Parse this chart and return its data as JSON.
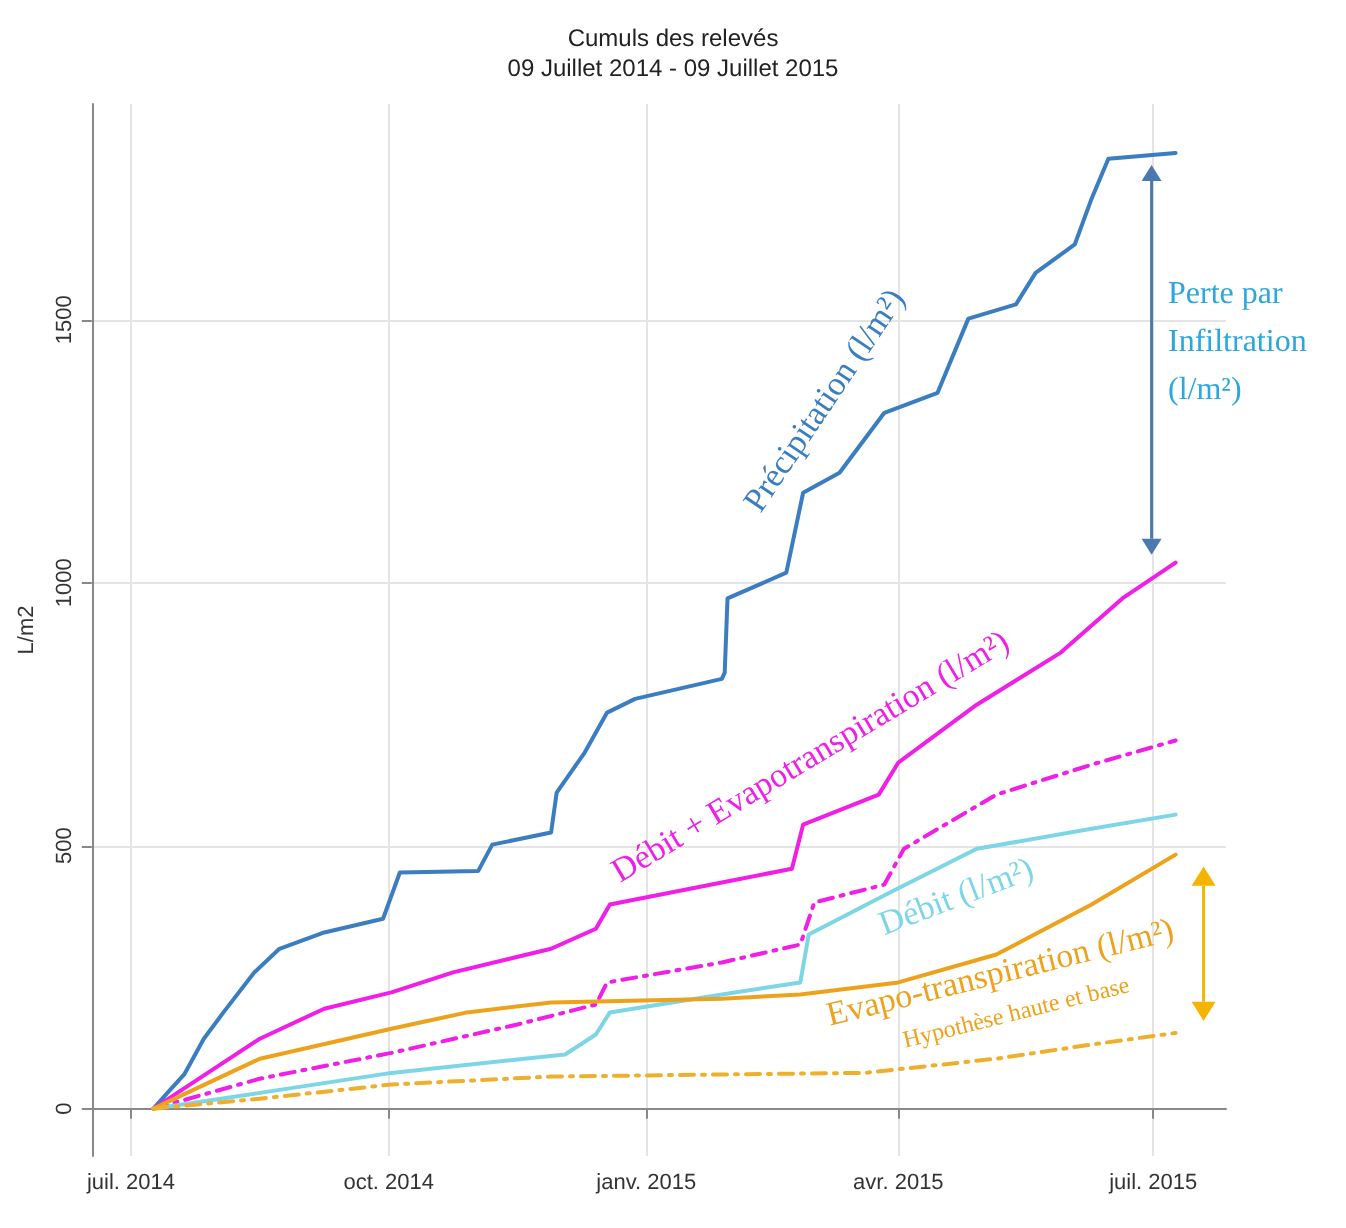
{
  "chart_data": {
    "type": "line",
    "title": "Cumuls des relevés",
    "subtitle": "09 Juillet 2014 - 09 Juillet 2015",
    "ylabel": "L/m2",
    "xlim": [
      "2014-06-17",
      "2015-07-27"
    ],
    "xticks": [
      {
        "value": "2014-07-01",
        "label": "juil. 2014"
      },
      {
        "value": "2014-10-01",
        "label": "oct. 2014"
      },
      {
        "value": "2015-01-01",
        "label": "janv. 2015"
      },
      {
        "value": "2015-04-01",
        "label": "avr. 2015"
      },
      {
        "value": "2015-07-01",
        "label": "juil. 2015"
      }
    ],
    "ylim": [
      -90,
      1910
    ],
    "yticks": [
      0,
      500,
      1000,
      1500
    ],
    "grid": true,
    "legend": false,
    "marker": "none",
    "series": [
      {
        "name": "Précipitation (l/m²)",
        "color": "#3a7dc0",
        "line_style": "solid",
        "x": [
          "2014-07-09",
          "2014-07-14",
          "2014-07-20",
          "2014-07-27",
          "2014-08-03",
          "2014-08-14",
          "2014-08-23",
          "2014-09-08",
          "2014-09-29",
          "2014-10-05",
          "2014-11-02",
          "2014-11-07",
          "2014-11-28",
          "2014-11-30",
          "2014-12-10",
          "2014-12-18",
          "2014-12-28",
          "2015-01-28",
          "2015-01-29",
          "2015-01-30",
          "2015-02-20",
          "2015-02-26",
          "2015-03-11",
          "2015-03-27",
          "2015-04-15",
          "2015-04-26",
          "2015-05-13",
          "2015-05-20",
          "2015-06-03",
          "2015-06-09",
          "2015-06-15",
          "2015-07-09"
        ],
        "values": [
          0,
          30,
          65,
          133,
          183,
          259,
          304,
          335,
          361,
          449,
          452,
          502,
          525,
          601,
          677,
          753,
          779,
          817,
          829,
          970,
          1019,
          1171,
          1209,
          1323,
          1361,
          1502,
          1529,
          1589,
          1643,
          1730,
          1806,
          1817
        ]
      },
      {
        "name": "Débit + Evapotranspiration (l/m²)",
        "color": "#f01ee6",
        "line_style": "solid",
        "x": [
          "2014-07-09",
          "2014-08-16",
          "2014-09-08",
          "2014-10-02",
          "2014-10-24",
          "2014-11-28",
          "2014-12-14",
          "2014-12-19",
          "2015-01-28",
          "2015-02-22",
          "2015-02-26",
          "2015-03-25",
          "2015-04-01",
          "2015-04-29",
          "2015-05-29",
          "2015-06-20",
          "2015-07-09"
        ],
        "values": [
          0,
          133,
          190,
          221,
          259,
          304,
          342,
          388,
          430,
          456,
          540,
          597,
          658,
          768,
          867,
          970,
          1038
        ]
      },
      {
        "color": "#f01ee6",
        "line_style": "dashed",
        "x": [
          "2014-07-09",
          "2014-08-16",
          "2014-10-02",
          "2014-11-16",
          "2014-12-14",
          "2014-12-18",
          "2015-01-28",
          "2015-02-25",
          "2015-03-02",
          "2015-03-27",
          "2015-04-03",
          "2015-05-06",
          "2015-06-09",
          "2015-07-09"
        ],
        "values": [
          0,
          57,
          106,
          160,
          198,
          240,
          278,
          312,
          392,
          426,
          494,
          597,
          654,
          700
        ]
      },
      {
        "name": "Débit (l/m²)",
        "color": "#7dd6e6",
        "line_style": "solid",
        "x": [
          "2014-07-09",
          "2014-08-16",
          "2014-10-02",
          "2014-12-03",
          "2014-12-14",
          "2014-12-19",
          "2015-01-28",
          "2015-02-25",
          "2015-02-28",
          "2015-03-29",
          "2015-04-29",
          "2015-06-09",
          "2015-07-09"
        ],
        "values": [
          0,
          30,
          68,
          103,
          141,
          183,
          217,
          240,
          331,
          411,
          494,
          532,
          559
        ]
      },
      {
        "name": "Evapo-transpiration (l/m²)",
        "color": "#eea21c",
        "line_style": "solid",
        "x": [
          "2014-07-09",
          "2014-08-16",
          "2014-10-02",
          "2014-10-29",
          "2014-11-28",
          "2015-01-28",
          "2015-02-25",
          "2015-04-01",
          "2015-05-06",
          "2015-06-09",
          "2015-07-09"
        ],
        "values": [
          0,
          95,
          152,
          183,
          202,
          209,
          217,
          240,
          293,
          388,
          483
        ]
      },
      {
        "color": "#eeb02c",
        "line_style": "dashed",
        "x": [
          "2014-07-09",
          "2014-08-16",
          "2014-10-02",
          "2014-11-28",
          "2015-01-28",
          "2015-03-20",
          "2015-05-06",
          "2015-06-09",
          "2015-07-09"
        ],
        "values": [
          0,
          19,
          46,
          61,
          65,
          68,
          95,
          122,
          144
        ]
      }
    ],
    "annotations": [
      "Hypothèse haute et base",
      "Perte par Infiltration (l/m²)"
    ]
  }
}
